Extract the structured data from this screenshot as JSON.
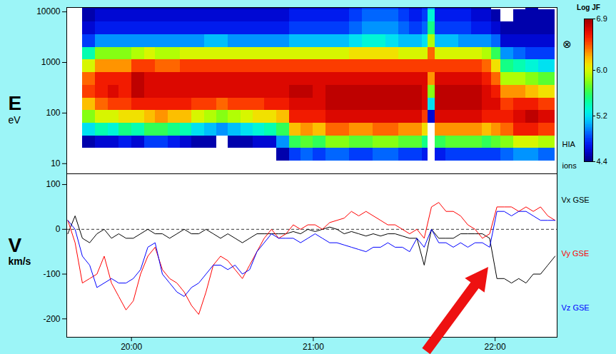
{
  "chart_data": [
    {
      "type": "heatmap",
      "xlim": [
        19.644,
        22.341
      ],
      "ylim": [
        6.3,
        12200
      ],
      "yticks": [
        10,
        100,
        1000,
        10000
      ],
      "log": "y",
      "tick_labels": "y",
      "ylabel": "E",
      "yunit": "eV",
      "annotations": [
        "⊗",
        "HIA",
        "ions"
      ],
      "time_bins": [
        19.73,
        19.8,
        19.87,
        19.93,
        20.0,
        20.07,
        20.13,
        20.2,
        20.27,
        20.33,
        20.4,
        20.47,
        20.53,
        20.6,
        20.67,
        20.73,
        20.8,
        20.87,
        20.93,
        21.0,
        21.07,
        21.13,
        21.2,
        21.27,
        21.33,
        21.4,
        21.47,
        21.53,
        21.6,
        21.63,
        21.67,
        21.73,
        21.8,
        21.87,
        21.93,
        21.98,
        22.03,
        22.1,
        22.17,
        22.24,
        22.33
      ],
      "energy_bins": [
        6.3,
        11.2,
        20,
        35.5,
        63.1,
        112,
        200,
        355,
        631,
        1122,
        1995,
        3548,
        6310,
        11220,
        19950
      ],
      "cells": [
        [
          null,
          null,
          4.5,
          5.2,
          5.8,
          6.2,
          6.5,
          6.4,
          6.0,
          5.4,
          4.8,
          4.6,
          4.5,
          4.5
        ],
        [
          null,
          null,
          4.6,
          5.4,
          6.0,
          6.4,
          6.6,
          6.6,
          6.3,
          5.8,
          5.0,
          4.7,
          4.6,
          4.5
        ],
        [
          null,
          null,
          4.6,
          5.3,
          6.0,
          6.5,
          6.7,
          6.6,
          6.3,
          5.8,
          5.0,
          4.7,
          4.6,
          4.5
        ],
        [
          null,
          null,
          4.7,
          5.5,
          6.1,
          6.5,
          6.6,
          6.6,
          6.3,
          5.8,
          5.0,
          4.7,
          4.6,
          4.5
        ],
        [
          null,
          null,
          4.6,
          5.4,
          6.1,
          6.6,
          6.8,
          6.8,
          6.5,
          5.9,
          5.0,
          4.7,
          4.6,
          4.5
        ],
        [
          null,
          null,
          4.8,
          5.6,
          6.2,
          6.6,
          6.7,
          6.7,
          6.5,
          6.0,
          5.0,
          4.7,
          4.6,
          4.5
        ],
        [
          null,
          null,
          4.8,
          5.6,
          6.3,
          6.6,
          6.7,
          6.7,
          6.4,
          5.9,
          5.0,
          4.7,
          4.6,
          4.5
        ],
        [
          null,
          null,
          4.7,
          5.5,
          6.2,
          6.6,
          6.7,
          6.7,
          6.4,
          5.9,
          5.0,
          4.7,
          4.6,
          4.5
        ],
        [
          null,
          null,
          4.6,
          5.4,
          6.2,
          6.6,
          6.7,
          6.7,
          6.5,
          6.0,
          5.0,
          4.7,
          4.6,
          4.5
        ],
        [
          null,
          null,
          4.5,
          5.2,
          6.0,
          6.5,
          6.7,
          6.7,
          6.5,
          6.0,
          5.0,
          4.7,
          4.6,
          4.5
        ],
        [
          null,
          null,
          4.5,
          5.1,
          5.9,
          6.5,
          6.7,
          6.7,
          6.5,
          6.0,
          5.1,
          4.7,
          4.6,
          4.5
        ],
        [
          null,
          null,
          null,
          5.0,
          5.8,
          6.4,
          6.7,
          6.7,
          6.5,
          6.0,
          5.1,
          4.7,
          4.6,
          4.5
        ],
        [
          null,
          null,
          4.5,
          5.1,
          5.9,
          6.5,
          6.7,
          6.7,
          6.5,
          6.0,
          5.0,
          4.7,
          4.6,
          4.5
        ],
        [
          null,
          null,
          4.5,
          5.2,
          6.0,
          6.5,
          6.7,
          6.7,
          6.5,
          6.0,
          5.0,
          4.7,
          4.6,
          4.5
        ],
        [
          null,
          null,
          4.6,
          5.3,
          6.1,
          6.5,
          6.7,
          6.7,
          6.5,
          6.0,
          5.0,
          4.7,
          4.6,
          4.5
        ],
        [
          null,
          null,
          4.6,
          5.4,
          6.1,
          6.6,
          6.7,
          6.7,
          6.5,
          6.0,
          5.0,
          4.7,
          4.6,
          4.5
        ],
        [
          null,
          4.5,
          5.0,
          5.6,
          6.2,
          6.6,
          6.7,
          6.7,
          6.5,
          6.0,
          5.0,
          4.7,
          4.6,
          4.5
        ],
        [
          null,
          4.8,
          5.6,
          6.2,
          6.6,
          6.7,
          6.8,
          6.7,
          6.5,
          6.0,
          5.1,
          4.8,
          4.7,
          4.6
        ],
        [
          null,
          4.9,
          5.7,
          6.3,
          6.6,
          6.7,
          6.8,
          6.7,
          6.5,
          6.0,
          5.1,
          4.8,
          4.7,
          4.6
        ],
        [
          null,
          4.8,
          5.6,
          6.2,
          6.6,
          6.7,
          6.7,
          6.7,
          6.5,
          6.0,
          5.1,
          4.8,
          4.7,
          4.6
        ],
        [
          null,
          4.9,
          5.8,
          6.4,
          6.7,
          6.8,
          6.8,
          6.7,
          6.5,
          6.0,
          5.1,
          4.8,
          4.7,
          4.6
        ],
        [
          null,
          4.9,
          5.8,
          6.4,
          6.7,
          6.8,
          6.8,
          6.7,
          6.5,
          6.0,
          5.1,
          4.8,
          4.7,
          4.6
        ],
        [
          null,
          4.8,
          5.7,
          6.3,
          6.7,
          6.8,
          6.8,
          6.7,
          6.5,
          6.1,
          5.2,
          4.9,
          4.8,
          4.7
        ],
        [
          null,
          4.8,
          5.7,
          6.3,
          6.7,
          6.8,
          6.8,
          6.7,
          6.5,
          6.1,
          5.3,
          5.0,
          4.9,
          4.8
        ],
        [
          null,
          4.9,
          5.8,
          6.4,
          6.7,
          6.8,
          6.8,
          6.7,
          6.5,
          6.1,
          5.3,
          5.0,
          4.9,
          4.8
        ],
        [
          null,
          4.9,
          5.8,
          6.4,
          6.7,
          6.8,
          6.8,
          6.7,
          6.5,
          6.1,
          5.2,
          5.0,
          4.9,
          4.8
        ],
        [
          null,
          4.8,
          5.7,
          6.3,
          6.7,
          6.8,
          6.8,
          6.7,
          6.5,
          6.0,
          5.1,
          4.9,
          4.8,
          4.7
        ],
        [
          null,
          4.8,
          5.7,
          6.3,
          6.7,
          6.8,
          6.8,
          6.7,
          6.5,
          6.0,
          5.1,
          4.8,
          4.7,
          4.6
        ],
        [
          null,
          4.7,
          5.5,
          6.1,
          6.5,
          6.7,
          6.7,
          6.7,
          6.5,
          6.0,
          5.2,
          4.9,
          4.8,
          4.7
        ],
        [
          null,
          null,
          null,
          null,
          4.6,
          5.2,
          5.8,
          6.3,
          6.5,
          6.4,
          5.9,
          5.5,
          5.3,
          5.0
        ],
        [
          null,
          4.7,
          5.6,
          6.3,
          6.7,
          6.8,
          6.8,
          6.7,
          6.5,
          6.0,
          5.1,
          4.8,
          4.7,
          4.6
        ],
        [
          null,
          4.8,
          5.7,
          6.3,
          6.7,
          6.8,
          6.8,
          6.7,
          6.5,
          6.0,
          5.1,
          4.8,
          4.7,
          4.6
        ],
        [
          null,
          4.8,
          5.7,
          6.3,
          6.7,
          6.8,
          6.8,
          6.7,
          6.5,
          6.0,
          5.0,
          4.8,
          4.7,
          4.6
        ],
        [
          null,
          4.8,
          5.7,
          6.3,
          6.7,
          6.8,
          6.8,
          6.7,
          6.5,
          6.0,
          5.0,
          4.7,
          4.6,
          4.5
        ],
        [
          null,
          4.8,
          5.6,
          6.2,
          6.6,
          6.7,
          6.7,
          6.6,
          6.4,
          5.9,
          5.0,
          4.7,
          4.6,
          4.5
        ],
        [
          null,
          4.8,
          5.7,
          6.3,
          6.6,
          6.7,
          6.6,
          6.4,
          6.1,
          5.6,
          4.9,
          4.6,
          4.5,
          null
        ],
        [
          null,
          4.9,
          5.8,
          6.4,
          6.6,
          6.5,
          6.3,
          5.9,
          5.5,
          5.0,
          4.6,
          4.5,
          null,
          null
        ],
        [
          null,
          5.0,
          6.0,
          6.6,
          6.7,
          6.6,
          6.3,
          5.9,
          5.4,
          4.9,
          4.6,
          4.5,
          4.5,
          null
        ],
        [
          null,
          5.0,
          6.0,
          6.6,
          6.8,
          6.6,
          6.2,
          5.8,
          5.3,
          4.8,
          4.6,
          4.5,
          4.5,
          4.5
        ],
        [
          null,
          4.9,
          5.9,
          6.5,
          6.7,
          6.5,
          6.1,
          5.7,
          5.2,
          4.8,
          4.6,
          4.5,
          4.5,
          null
        ]
      ],
      "colorbar": {
        "title": "Log JF",
        "range": [
          4.4,
          6.9
        ],
        "ticks": [
          6.9,
          {
            "value": 6,
            "label": "6.0"
          },
          5.2,
          4.4
        ]
      }
    },
    {
      "type": "line",
      "xlim": [
        19.644,
        22.341
      ],
      "xticks": [
        {
          "value": 20,
          "label": "20:00"
        },
        {
          "value": 21,
          "label": "21:00"
        },
        {
          "value": 22,
          "label": "22:00"
        }
      ],
      "ylim": [
        -241,
        124
      ],
      "yticks": [
        -200,
        -100,
        0,
        100
      ],
      "ylabel": "V",
      "yunit": "km/s",
      "legend": "right",
      "hlines": [
        {
          "value": 0,
          "line_style": "dashed"
        }
      ],
      "x": [
        19.65,
        19.69,
        19.73,
        19.77,
        19.81,
        19.85,
        19.89,
        19.93,
        19.97,
        20.01,
        20.05,
        20.09,
        20.13,
        20.17,
        20.21,
        20.25,
        20.29,
        20.33,
        20.37,
        20.41,
        20.45,
        20.49,
        20.53,
        20.57,
        20.61,
        20.65,
        20.69,
        20.73,
        20.77,
        20.81,
        20.85,
        20.89,
        20.93,
        20.97,
        21.01,
        21.05,
        21.09,
        21.13,
        21.17,
        21.21,
        21.25,
        21.29,
        21.33,
        21.37,
        21.41,
        21.45,
        21.49,
        21.53,
        21.57,
        21.61,
        21.65,
        21.69,
        21.73,
        21.77,
        21.81,
        21.85,
        21.89,
        21.93,
        21.97,
        22.01,
        22.05,
        22.09,
        22.13,
        22.17,
        22.21,
        22.25,
        22.29,
        22.33
      ],
      "series": [
        {
          "name": "Vx GSE",
          "color": "#000000",
          "values": [
            -10,
            30,
            -20,
            -30,
            -10,
            0,
            -20,
            -10,
            -20,
            -20,
            -10,
            0,
            -10,
            -10,
            -20,
            -10,
            0,
            -10,
            -10,
            0,
            -10,
            -20,
            -10,
            -20,
            -30,
            -20,
            -10,
            -10,
            -10,
            -10,
            -10,
            -5,
            -10,
            0,
            -5,
            0,
            5,
            0,
            -10,
            -5,
            -10,
            -15,
            -10,
            -15,
            -10,
            -10,
            -15,
            -20,
            -20,
            -80,
            0,
            -20,
            -20,
            -20,
            -10,
            -10,
            -10,
            -10,
            -20,
            -110,
            -110,
            -120,
            -110,
            -120,
            -100,
            -100,
            -80,
            -60
          ]
        },
        {
          "name": "Vy GSE",
          "color": "#ff0000",
          "values": [
            20,
            -30,
            -120,
            -110,
            -100,
            -60,
            -120,
            -150,
            -180,
            -160,
            -100,
            -60,
            -40,
            -90,
            -110,
            -120,
            -140,
            -170,
            -190,
            -140,
            -80,
            -60,
            -70,
            -90,
            -110,
            -80,
            -50,
            -20,
            0,
            -20,
            -10,
            10,
            0,
            10,
            10,
            0,
            15,
            20,
            25,
            40,
            30,
            40,
            30,
            20,
            10,
            10,
            0,
            -10,
            0,
            -20,
            50,
            60,
            40,
            40,
            30,
            10,
            0,
            -20,
            -10,
            50,
            50,
            50,
            40,
            50,
            40,
            50,
            30,
            20
          ]
        },
        {
          "name": "Vz GSE",
          "color": "#0000ff",
          "values": [
            20,
            0,
            -60,
            -80,
            -130,
            -120,
            -110,
            -120,
            -120,
            -110,
            -90,
            -40,
            -30,
            -100,
            -120,
            -140,
            -150,
            -130,
            -120,
            -100,
            -80,
            -80,
            -90,
            -80,
            -100,
            -90,
            -50,
            -30,
            -10,
            -20,
            -20,
            -20,
            -30,
            -20,
            -10,
            -20,
            -30,
            -30,
            -35,
            -40,
            -45,
            -50,
            -40,
            -40,
            -30,
            -40,
            -40,
            -50,
            -20,
            -40,
            0,
            -30,
            -30,
            -40,
            -30,
            -40,
            -30,
            -30,
            -40,
            40,
            40,
            30,
            40,
            40,
            30,
            20,
            20,
            20
          ]
        }
      ]
    }
  ]
}
